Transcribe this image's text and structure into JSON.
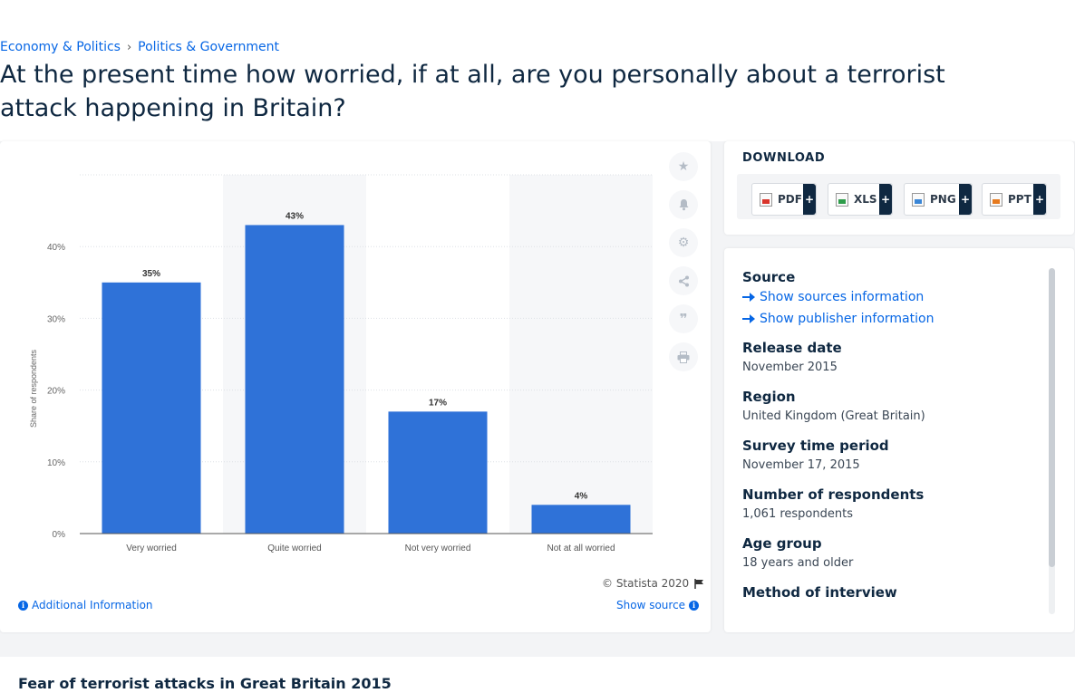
{
  "breadcrumb": {
    "first": "Economy & Politics",
    "separator": "›",
    "second": "Politics & Government"
  },
  "page_title": "At the present time how worried, if at all, are you personally about a terrorist attack happening in Britain?",
  "chart_footer": {
    "copyright": "© Statista 2020",
    "additional_info": "Additional Information",
    "show_source": "Show source"
  },
  "tools": [
    "star-icon",
    "bell-icon",
    "gear-icon",
    "share-icon",
    "quote-icon",
    "print-icon"
  ],
  "download": {
    "title": "DOWNLOAD",
    "buttons": [
      {
        "label": "PDF",
        "icon": "pdf-file-icon",
        "plus": "+"
      },
      {
        "label": "XLS",
        "icon": "xls-file-icon",
        "plus": "+"
      },
      {
        "label": "PNG",
        "icon": "png-file-icon",
        "plus": "+"
      },
      {
        "label": "PPT",
        "icon": "ppt-file-icon",
        "plus": "+"
      }
    ]
  },
  "info": {
    "source_label": "Source",
    "show_sources": "Show sources information",
    "show_publisher": "Show publisher information",
    "release_date_label": "Release date",
    "release_date": "November 2015",
    "region_label": "Region",
    "region": "United Kingdom (Great Britain)",
    "survey_period_label": "Survey time period",
    "survey_period": "November 17, 2015",
    "respondents_label": "Number of respondents",
    "respondents": "1,061 respondents",
    "age_group_label": "Age group",
    "age_group": "18 years and older",
    "method_label": "Method of interview"
  },
  "bottom_title": "Fear of terrorist attacks in Great Britain 2015",
  "chart_data": {
    "type": "bar",
    "categories": [
      "Very worried",
      "Quite worried",
      "Not very worried",
      "Not at all worried"
    ],
    "values": [
      35,
      43,
      17,
      4
    ],
    "data_labels": [
      "35%",
      "43%",
      "17%",
      "4%"
    ],
    "ylabel": "Share of respondents",
    "xlabel": "",
    "ylim": [
      0,
      50
    ],
    "yticks": [
      0,
      10,
      20,
      30,
      40
    ],
    "ytick_labels": [
      "0%",
      "10%",
      "20%",
      "30%",
      "40%"
    ],
    "bar_color": "#2f72d8",
    "grid": true
  }
}
